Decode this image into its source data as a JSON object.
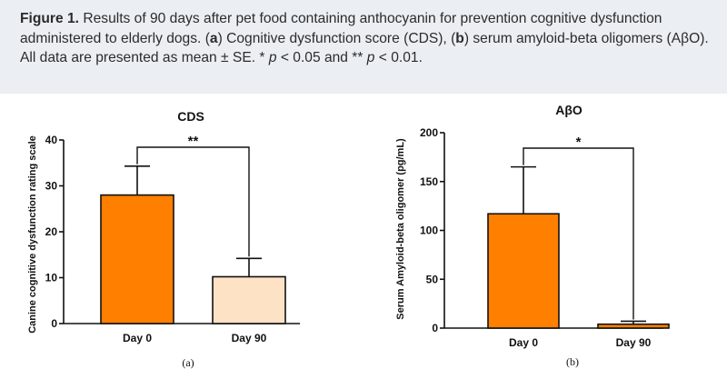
{
  "caption": {
    "figure_label": "Figure 1.",
    "text_1": " Results of 90 days after pet food containing anthocyanin for prevention cognitive dysfunction administered to elderly dogs. (",
    "a_label": "a",
    "text_2": ") Cognitive dysfunction score (CDS), (",
    "b_label": "b",
    "text_3": ") serum amyloid-beta oligomers (AβO). All data are presented as mean ± SE. * ",
    "p1": "p",
    "text_4": " < 0.05 and ** ",
    "p2": "p",
    "text_5": " < 0.01."
  },
  "colors": {
    "bar_day0": "#ff7f00",
    "bar_day90_cds": "#fde2c6",
    "bar_day90_abo": "#ff7f00",
    "axis": "#111111"
  },
  "chart_data": [
    {
      "type": "bar",
      "title": "CDS",
      "ylabel": "Canine cognitive dysfunction rating scale",
      "xlabel": "",
      "categories": [
        "Day 0",
        "Day 90"
      ],
      "values": [
        28,
        10.2
      ],
      "errors": [
        6.3,
        4
      ],
      "ylim": [
        0,
        40
      ],
      "yticks": [
        0,
        10,
        20,
        30,
        40
      ],
      "significance": "**",
      "panel_label": "(a)"
    },
    {
      "type": "bar",
      "title": "AβO",
      "ylabel": "Serum Amyloid-beta oligomer (pg/mL)",
      "xlabel": "",
      "categories": [
        "Day 0",
        "Day 90"
      ],
      "values": [
        117,
        4
      ],
      "errors": [
        48,
        3
      ],
      "ylim": [
        0,
        200
      ],
      "yticks": [
        0,
        50,
        100,
        150,
        200
      ],
      "significance": "*",
      "panel_label": "(b)"
    }
  ]
}
